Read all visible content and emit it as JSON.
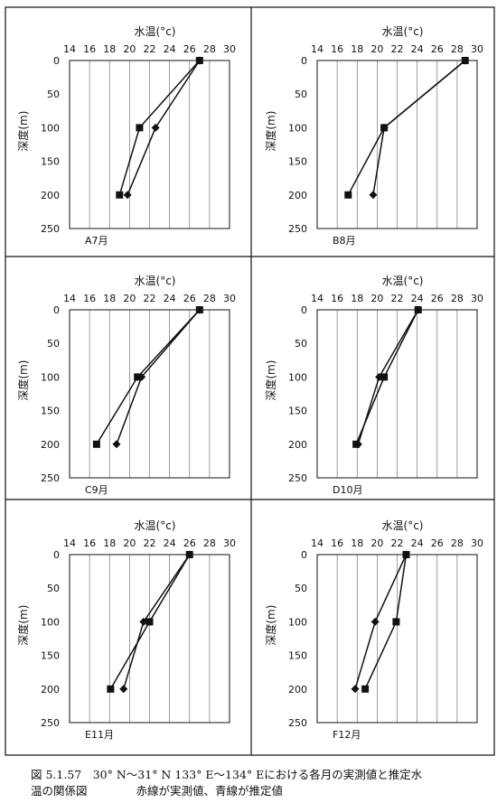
{
  "axis": {
    "x_title": "水温(°c)",
    "y_title": "深度(m)",
    "x_ticks": [
      14,
      16,
      18,
      20,
      22,
      24,
      26,
      28,
      30
    ],
    "y_ticks": [
      0,
      50,
      100,
      150,
      200,
      250
    ],
    "xlim": [
      14,
      30
    ],
    "ylim": [
      0,
      250
    ],
    "y_inverted": true,
    "grid_vertical": true
  },
  "chart_data": [
    {
      "type": "line",
      "panel_label": "A7月",
      "series": [
        {
          "marker": "square",
          "x": [
            27.0,
            21.0,
            19.0
          ],
          "y": [
            0,
            100,
            200
          ]
        },
        {
          "marker": "diamond",
          "x": [
            27.0,
            22.6,
            19.8
          ],
          "y": [
            0,
            100,
            200
          ]
        }
      ]
    },
    {
      "type": "line",
      "panel_label": "B8月",
      "series": [
        {
          "marker": "square",
          "x": [
            28.8,
            20.7,
            17.1
          ],
          "y": [
            0,
            100,
            200
          ]
        },
        {
          "marker": "diamond",
          "x": [
            28.8,
            20.7,
            19.6
          ],
          "y": [
            0,
            100,
            200
          ]
        }
      ]
    },
    {
      "type": "line",
      "panel_label": "C9月",
      "series": [
        {
          "marker": "square",
          "x": [
            27.0,
            20.8,
            16.7
          ],
          "y": [
            0,
            100,
            200
          ]
        },
        {
          "marker": "diamond",
          "x": [
            27.0,
            21.2,
            18.7
          ],
          "y": [
            0,
            100,
            200
          ]
        }
      ]
    },
    {
      "type": "line",
      "panel_label": "D10月",
      "series": [
        {
          "marker": "square",
          "x": [
            24.1,
            20.7,
            17.9
          ],
          "y": [
            0,
            100,
            200
          ]
        },
        {
          "marker": "diamond",
          "x": [
            24.1,
            20.2,
            18.1
          ],
          "y": [
            0,
            100,
            200
          ]
        }
      ]
    },
    {
      "type": "line",
      "panel_label": "E11月",
      "series": [
        {
          "marker": "square",
          "x": [
            26.0,
            22.0,
            18.1
          ],
          "y": [
            0,
            100,
            200
          ]
        },
        {
          "marker": "diamond",
          "x": [
            26.0,
            21.4,
            19.4
          ],
          "y": [
            0,
            100,
            200
          ]
        }
      ]
    },
    {
      "type": "line",
      "panel_label": "F12月",
      "series": [
        {
          "marker": "square",
          "x": [
            22.9,
            21.9,
            18.8
          ],
          "y": [
            0,
            100,
            200
          ]
        },
        {
          "marker": "diamond",
          "x": [
            22.9,
            19.8,
            17.8
          ],
          "y": [
            0,
            100,
            200
          ]
        }
      ]
    }
  ],
  "caption": {
    "line1": "図 5.1.57　30° N～31° N 133° E～134° Eにおける各月の実測値と推定水",
    "line2_a": "温の関係図",
    "line2_b": "赤線が実測値、青線が推定値"
  }
}
